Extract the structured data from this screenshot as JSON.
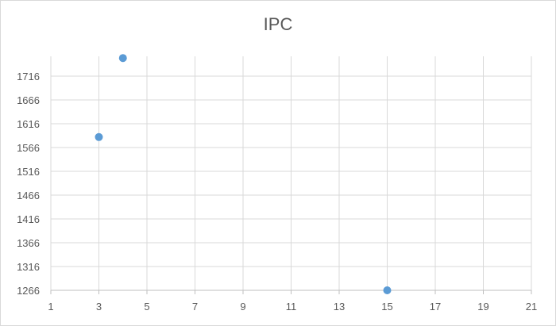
{
  "chart_data": {
    "type": "scatter",
    "title": "IPC",
    "xlabel": "",
    "ylabel": "",
    "xlim": [
      1,
      21
    ],
    "ylim": [
      1266,
      1766
    ],
    "x_ticks": [
      1,
      3,
      5,
      7,
      9,
      11,
      13,
      15,
      17,
      19,
      21
    ],
    "y_ticks": [
      1266,
      1316,
      1366,
      1416,
      1466,
      1516,
      1566,
      1616,
      1666,
      1716
    ],
    "grid": true,
    "legend": "none",
    "series": [
      {
        "color": "#5b9bd5",
        "points": [
          {
            "x": 3,
            "y": 1588
          },
          {
            "x": 4,
            "y": 1754
          },
          {
            "x": 15,
            "y": 1266
          }
        ]
      }
    ]
  }
}
